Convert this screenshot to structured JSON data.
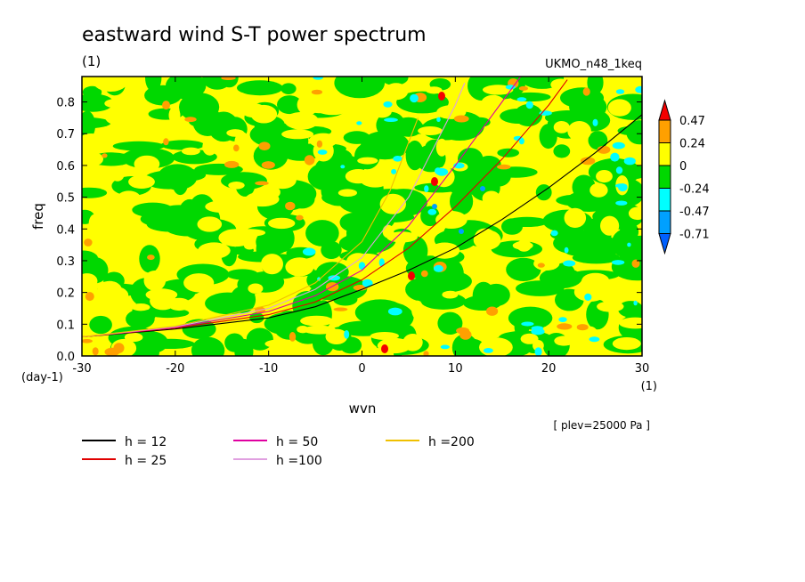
{
  "chart_data": {
    "type": "heatmap",
    "title": "eastward wind S-T power spectrum",
    "subtitle_units": "(1)",
    "model_label": "UKMO_n48_1keq",
    "xlabel": "wvn",
    "ylabel": "freq",
    "x_unit": "(1)",
    "y_unit": "(day-1)",
    "annotation": "[ plev=25000 Pa ]",
    "xlim": [
      -30,
      30
    ],
    "ylim": [
      0,
      0.88
    ],
    "x_ticks": [
      -30,
      -20,
      -10,
      0,
      10,
      20,
      30
    ],
    "x_tick_labels": [
      "-30",
      "-20",
      "-10",
      "0",
      "10",
      "20",
      "30"
    ],
    "y_ticks": [
      0,
      0.1,
      0.2,
      0.3,
      0.4,
      0.5,
      0.6,
      0.7,
      0.8
    ],
    "y_tick_labels": [
      "0.0",
      "0.1",
      "0.2",
      "0.3",
      "0.4",
      "0.5",
      "0.6",
      "0.7",
      "0.8"
    ],
    "colorbar": {
      "levels": [
        "0.47",
        "0.24",
        "0",
        "-0.24",
        "-0.47",
        "-0.71"
      ],
      "colors": [
        "#f40000",
        "#ffa000",
        "#ffff00",
        "#00d800",
        "#00ffff",
        "#00a0ff",
        "#0060ff"
      ]
    },
    "field_note": "Mostly values between -0.24 and 0.24 (yellow/green mottled), scattered patches of -0.47 and 0.47",
    "dispersion_curves": [
      {
        "name": "h = 12",
        "color": "#000000",
        "x": [
          -30,
          -20,
          -10,
          -5,
          0,
          5,
          10,
          15,
          20,
          25,
          30
        ],
        "y": [
          0.06,
          0.085,
          0.12,
          0.155,
          0.21,
          0.27,
          0.34,
          0.43,
          0.53,
          0.64,
          0.76
        ]
      },
      {
        "name": "h = 25",
        "color": "#e00000",
        "x": [
          -30,
          -20,
          -10,
          -5,
          0,
          5,
          10,
          15,
          20,
          22
        ],
        "y": [
          0.06,
          0.088,
          0.13,
          0.17,
          0.24,
          0.34,
          0.47,
          0.62,
          0.79,
          0.87
        ]
      },
      {
        "name": "h = 50",
        "color": "#e000a0",
        "x": [
          -30,
          -20,
          -10,
          -5,
          0,
          5,
          10,
          15,
          17
        ],
        "y": [
          0.06,
          0.09,
          0.14,
          0.19,
          0.27,
          0.41,
          0.6,
          0.8,
          0.88
        ]
      },
      {
        "name": "h =100",
        "color": "#e0a0e0",
        "x": [
          -30,
          -20,
          -10,
          -5,
          0,
          5,
          10,
          11
        ],
        "y": [
          0.06,
          0.092,
          0.15,
          0.21,
          0.31,
          0.5,
          0.79,
          0.86
        ]
      },
      {
        "name": "h =200",
        "color": "#f0c000",
        "x": [
          -30,
          -20,
          -10,
          -5,
          0,
          3,
          6
        ],
        "y": [
          0.06,
          0.094,
          0.16,
          0.23,
          0.36,
          0.52,
          0.75
        ]
      }
    ]
  }
}
